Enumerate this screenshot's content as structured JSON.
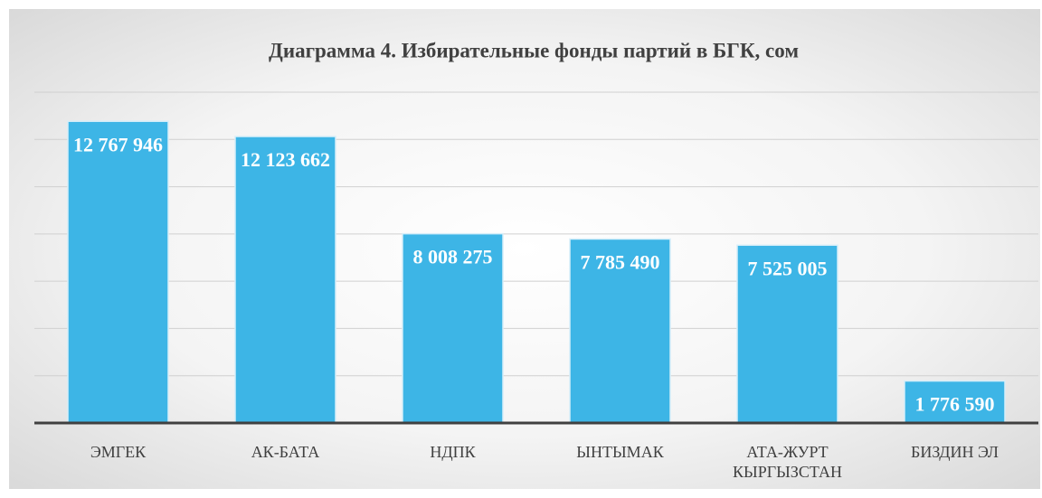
{
  "chart_data": {
    "type": "bar",
    "title": "Диаграмма 4. Избирательные фонды партий в БГК, сом",
    "categories": [
      "ЭМГЕК",
      "АК-БАТА",
      "НДПК",
      "ЫНТЫМАК",
      "АТА-ЖУРТ КЫРГЫЗСТАН",
      "БИЗДИН ЭЛ"
    ],
    "values": [
      12767946,
      12123662,
      8008275,
      7785490,
      7525005,
      1776590
    ],
    "value_labels": [
      "12 767 946",
      "12 123 662",
      "8 008 275",
      "7 785 490",
      "7 525 005",
      "1 776 590"
    ],
    "color": "#3db5e6",
    "ylim": [
      0,
      14000000
    ],
    "yticks": [
      0,
      2000000,
      4000000,
      6000000,
      8000000,
      10000000,
      12000000,
      14000000
    ],
    "grid": true
  }
}
